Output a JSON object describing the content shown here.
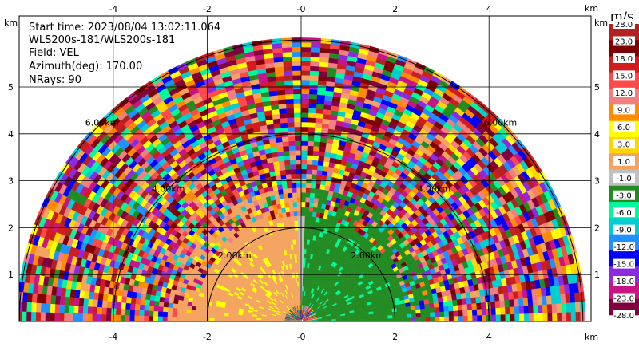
{
  "info": {
    "start_time": "Start time: 2023/08/04 13:02:11.064",
    "instrument": "WLS200s-181/WLS200s-181",
    "field": "Field: VEL",
    "azimuth": "Azimuth(deg): 170.00",
    "nrays": "NRays: 90"
  },
  "chart_data": {
    "type": "heatmap",
    "x_unit": "km",
    "y_unit": "km",
    "xlim": [
      -6.0,
      6.0
    ],
    "ylim": [
      0,
      6.0
    ],
    "x_ticks": [
      -4,
      -2,
      0,
      2,
      4
    ],
    "x_tick_labels": [
      "-4",
      "-2",
      "-0",
      "2",
      "4"
    ],
    "y_ticks": [
      1,
      2,
      3,
      4,
      5
    ],
    "y_tick_labels": [
      "1",
      "2",
      "3",
      "4",
      "5"
    ],
    "range_rings_km": [
      2.0,
      4.0,
      6.0
    ],
    "range_ring_labels": [
      "2.00km",
      "4.00km",
      "6.00km"
    ],
    "grid": true,
    "colorbar": {
      "unit": "m/s",
      "tick_labels": [
        "28.0",
        "23.0",
        "18.0",
        "15.0",
        "12.0",
        "9.0",
        "6.0",
        "3.0",
        "1.0",
        "-1.0",
        "-3.0",
        "-6.0",
        "-9.0",
        "-12.0",
        "-15.0",
        "-18.0",
        "-23.0",
        "-28.0"
      ],
      "colors": [
        "#b22222",
        "#7f0000",
        "#d01c1c",
        "#ff4a4a",
        "#f08080",
        "#ff8c00",
        "#ffff00",
        "#ffd700",
        "#f4a460",
        "#c0c0c0",
        "#228b22",
        "#00fa9a",
        "#00ced1",
        "#1e90ff",
        "#0000ff",
        "#8a2be2",
        "#c71585",
        "#800040"
      ]
    }
  }
}
